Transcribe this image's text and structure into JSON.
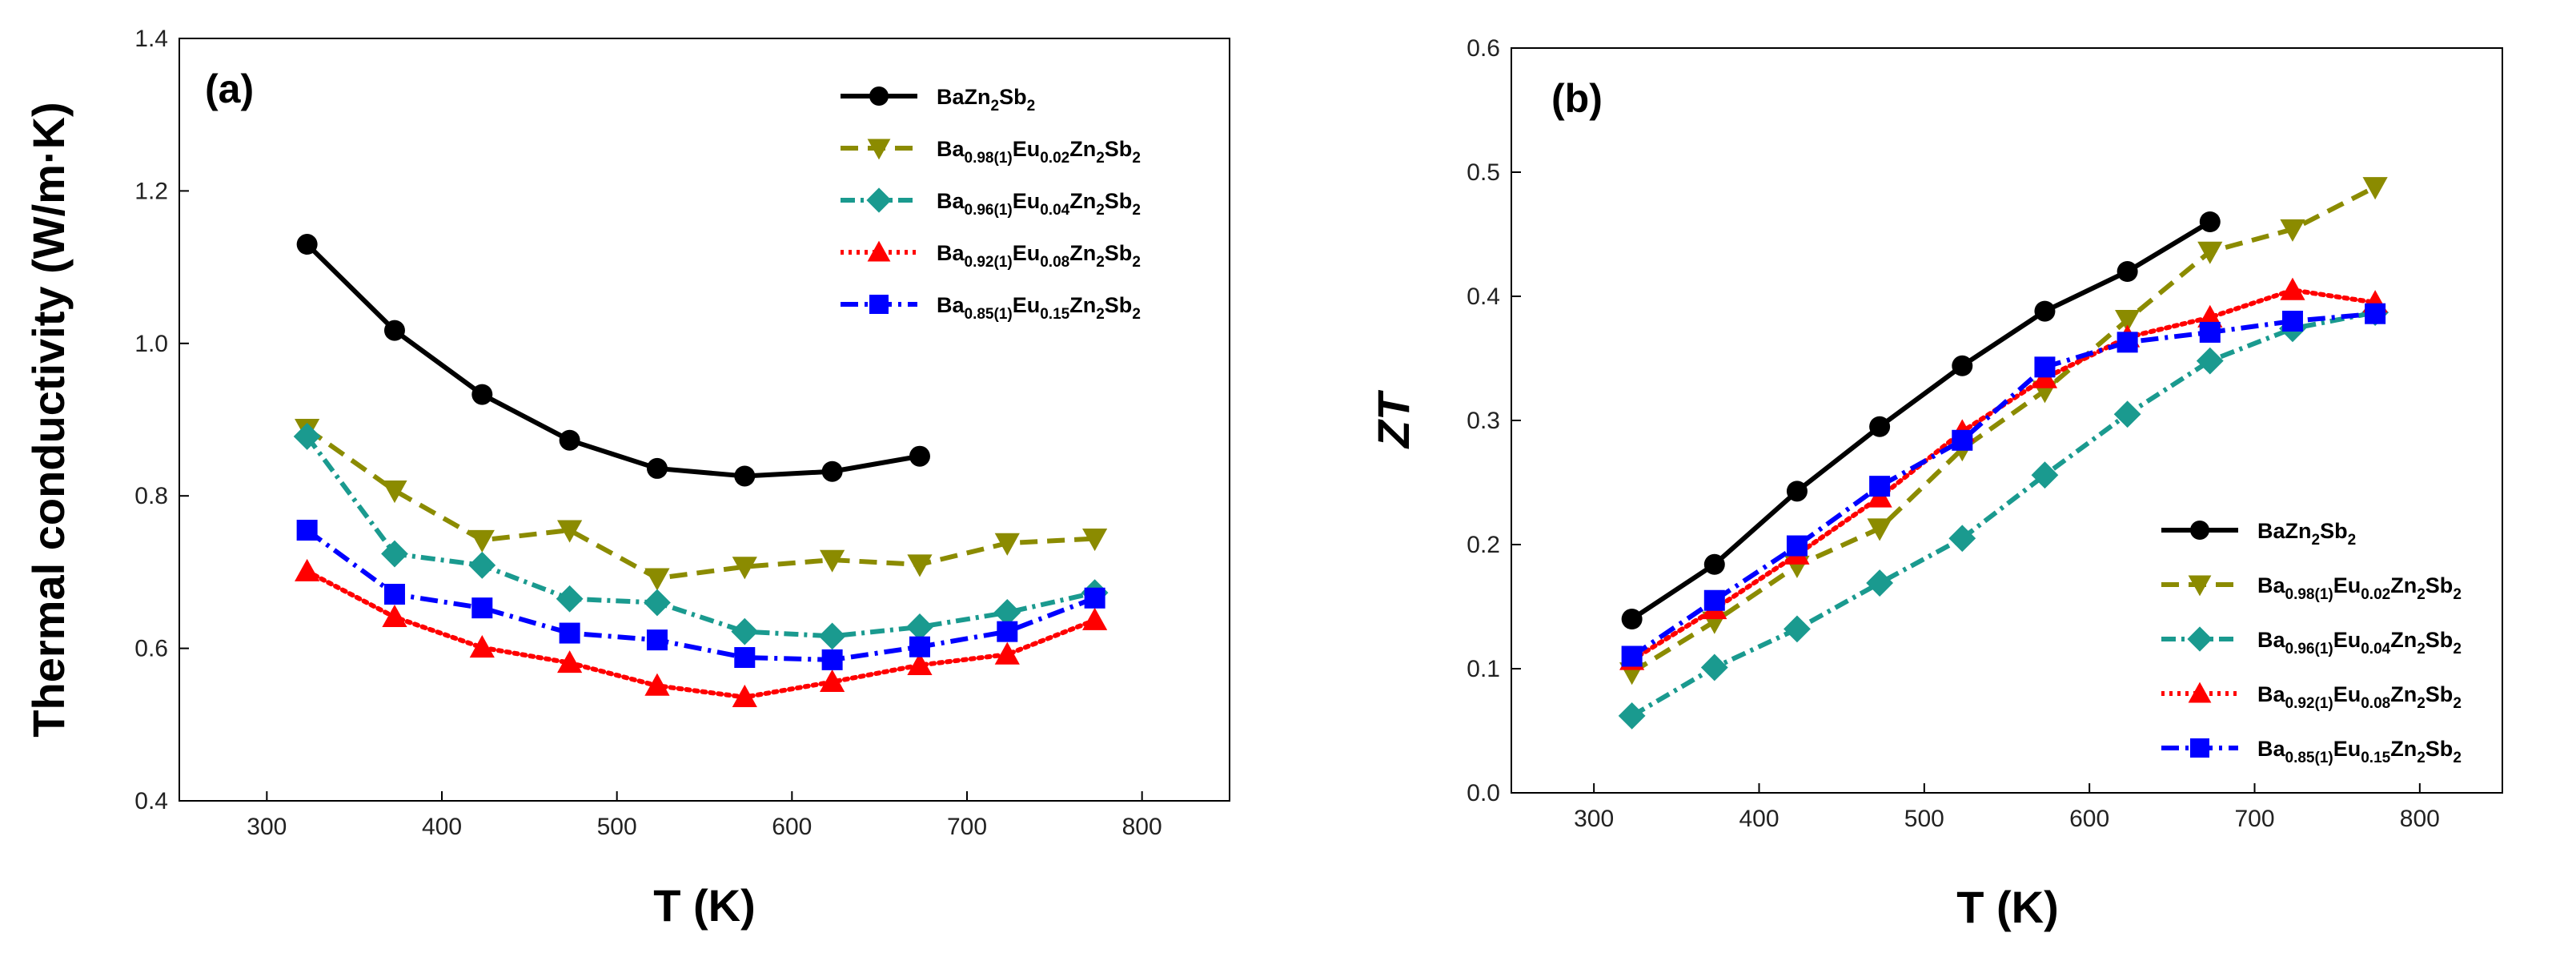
{
  "chart_data": [
    {
      "type": "line",
      "panel_label": "(a)",
      "title": "",
      "xlabel": "T (K)",
      "ylabel": "Thermal conductivity (W/m·K)",
      "xlim": [
        250,
        850
      ],
      "ylim": [
        0.4,
        1.4
      ],
      "xticks": [
        300,
        400,
        500,
        600,
        700,
        800
      ],
      "yticks": [
        0.4,
        0.6,
        0.8,
        1.0,
        1.2,
        1.4
      ],
      "ytick_labels": [
        "0.4",
        "0.6",
        "0.8",
        "1.0",
        "1.2",
        "1.4"
      ],
      "legend_position": "top-right",
      "series": [
        {
          "name": "BaZn2Sb2",
          "legend_parts": [
            [
              "BaZn",
              ""
            ],
            [
              "2",
              "sub"
            ],
            [
              "Sb",
              ""
            ],
            [
              "2",
              "sub"
            ]
          ],
          "color": "#000000",
          "marker": "circle",
          "dash": "",
          "x": [
            323,
            373,
            423,
            473,
            523,
            573,
            623,
            673
          ],
          "y": [
            1.13,
            1.017,
            0.933,
            0.873,
            0.836,
            0.826,
            0.832,
            0.852
          ]
        },
        {
          "name": "Ba0.98(1)Eu0.02Zn2Sb2",
          "legend_parts": [
            [
              "Ba",
              ""
            ],
            [
              "0.98(1)",
              "sub"
            ],
            [
              "Eu",
              ""
            ],
            [
              "0.02",
              "sub"
            ],
            [
              "Zn",
              ""
            ],
            [
              "2",
              "sub"
            ],
            [
              "Sb",
              ""
            ],
            [
              "2",
              "sub"
            ]
          ],
          "color": "#8b8b00",
          "marker": "triangle-down",
          "dash": "22,12",
          "x": [
            323,
            373,
            423,
            473,
            523,
            573,
            623,
            673,
            723,
            773
          ],
          "y": [
            0.888,
            0.807,
            0.742,
            0.755,
            0.692,
            0.707,
            0.716,
            0.71,
            0.738,
            0.744
          ]
        },
        {
          "name": "Ba0.96(1)Eu0.04Zn2Sb2",
          "legend_parts": [
            [
              "Ba",
              ""
            ],
            [
              "0.96(1)",
              "sub"
            ],
            [
              "Eu",
              ""
            ],
            [
              "0.04",
              "sub"
            ],
            [
              "Zn",
              ""
            ],
            [
              "2",
              "sub"
            ],
            [
              "Sb",
              ""
            ],
            [
              "2",
              "sub"
            ]
          ],
          "color": "#1a9a8f",
          "marker": "diamond",
          "dash": "18,7,4,7",
          "x": [
            323,
            373,
            423,
            473,
            523,
            573,
            623,
            673,
            723,
            773
          ],
          "y": [
            0.878,
            0.724,
            0.709,
            0.665,
            0.66,
            0.622,
            0.616,
            0.628,
            0.647,
            0.673
          ]
        },
        {
          "name": "Ba0.92(1)Eu0.08Zn2Sb2",
          "legend_parts": [
            [
              "Ba",
              ""
            ],
            [
              "0.92(1)",
              "sub"
            ],
            [
              "Eu",
              ""
            ],
            [
              "0.08",
              "sub"
            ],
            [
              "Zn",
              ""
            ],
            [
              "2",
              "sub"
            ],
            [
              "Sb",
              ""
            ],
            [
              "2",
              "sub"
            ]
          ],
          "color": "#ff0000",
          "marker": "triangle-up",
          "dash": "4,6",
          "x": [
            323,
            373,
            423,
            473,
            523,
            573,
            623,
            673,
            723,
            773
          ],
          "y": [
            0.701,
            0.641,
            0.601,
            0.581,
            0.551,
            0.536,
            0.556,
            0.578,
            0.592,
            0.637
          ]
        },
        {
          "name": "Ba0.85(1)Eu0.15Zn2Sb2",
          "legend_parts": [
            [
              "Ba",
              ""
            ],
            [
              "0.85(1)",
              "sub"
            ],
            [
              "Eu",
              ""
            ],
            [
              "0.15",
              "sub"
            ],
            [
              "Zn",
              ""
            ],
            [
              "2",
              "sub"
            ],
            [
              "Sb",
              ""
            ],
            [
              "2",
              "sub"
            ]
          ],
          "color": "#0000ff",
          "marker": "square",
          "dash": "22,8,4,8",
          "x": [
            323,
            373,
            423,
            473,
            523,
            573,
            623,
            673,
            723,
            773
          ],
          "y": [
            0.755,
            0.671,
            0.653,
            0.62,
            0.611,
            0.588,
            0.585,
            0.602,
            0.622,
            0.666
          ]
        }
      ]
    },
    {
      "type": "line",
      "panel_label": "(b)",
      "title": "",
      "xlabel": "T (K)",
      "ylabel": "ZT",
      "xlim": [
        250,
        850
      ],
      "ylim": [
        0.0,
        0.6
      ],
      "xticks": [
        300,
        400,
        500,
        600,
        700,
        800
      ],
      "yticks": [
        0.0,
        0.1,
        0.2,
        0.3,
        0.4,
        0.5,
        0.6
      ],
      "ytick_labels": [
        "0.0",
        "0.1",
        "0.2",
        "0.3",
        "0.4",
        "0.5",
        "0.6"
      ],
      "legend_position": "bottom-right",
      "series": [
        {
          "name": "BaZn2Sb2",
          "legend_parts": [
            [
              "BaZn",
              ""
            ],
            [
              "2",
              "sub"
            ],
            [
              "Sb",
              ""
            ],
            [
              "2",
              "sub"
            ]
          ],
          "color": "#000000",
          "marker": "circle",
          "dash": "",
          "x": [
            323,
            373,
            423,
            473,
            523,
            573,
            623,
            673
          ],
          "y": [
            0.14,
            0.184,
            0.243,
            0.295,
            0.344,
            0.388,
            0.42,
            0.46
          ]
        },
        {
          "name": "Ba0.98(1)Eu0.02Zn2Sb2",
          "legend_parts": [
            [
              "Ba",
              ""
            ],
            [
              "0.98(1)",
              "sub"
            ],
            [
              "Eu",
              ""
            ],
            [
              "0.02",
              "sub"
            ],
            [
              "Zn",
              ""
            ],
            [
              "2",
              "sub"
            ],
            [
              "Sb",
              ""
            ],
            [
              "2",
              "sub"
            ]
          ],
          "color": "#8b8b00",
          "marker": "triangle-down",
          "dash": "22,12",
          "x": [
            323,
            373,
            423,
            473,
            523,
            573,
            623,
            673,
            723,
            773
          ],
          "y": [
            0.097,
            0.138,
            0.183,
            0.213,
            0.277,
            0.324,
            0.381,
            0.436,
            0.454,
            0.488
          ]
        },
        {
          "name": "Ba0.96(1)Eu0.04Zn2Sb2",
          "legend_parts": [
            [
              "Ba",
              ""
            ],
            [
              "0.96(1)",
              "sub"
            ],
            [
              "Eu",
              ""
            ],
            [
              "0.04",
              "sub"
            ],
            [
              "Zn",
              ""
            ],
            [
              "2",
              "sub"
            ],
            [
              "Sb",
              ""
            ],
            [
              "2",
              "sub"
            ]
          ],
          "color": "#1a9a8f",
          "marker": "diamond",
          "dash": "18,7,4,7",
          "x": [
            323,
            373,
            423,
            473,
            523,
            573,
            623,
            673,
            723,
            773
          ],
          "y": [
            0.062,
            0.101,
            0.132,
            0.169,
            0.205,
            0.256,
            0.305,
            0.348,
            0.374,
            0.387
          ]
        },
        {
          "name": "Ba0.92(1)Eu0.08Zn2Sb2",
          "legend_parts": [
            [
              "Ba",
              ""
            ],
            [
              "0.92(1)",
              "sub"
            ],
            [
              "Eu",
              ""
            ],
            [
              "0.08",
              "sub"
            ],
            [
              "Zn",
              ""
            ],
            [
              "2",
              "sub"
            ],
            [
              "Sb",
              ""
            ],
            [
              "2",
              "sub"
            ]
          ],
          "color": "#ff0000",
          "marker": "triangle-up",
          "dash": "4,6",
          "x": [
            323,
            373,
            423,
            473,
            523,
            573,
            623,
            673,
            723,
            773
          ],
          "y": [
            0.107,
            0.148,
            0.192,
            0.238,
            0.291,
            0.334,
            0.367,
            0.383,
            0.405,
            0.395
          ]
        },
        {
          "name": "Ba0.85(1)Eu0.15Zn2Sb2",
          "legend_parts": [
            [
              "Ba",
              ""
            ],
            [
              "0.85(1)",
              "sub"
            ],
            [
              "Eu",
              ""
            ],
            [
              "0.15",
              "sub"
            ],
            [
              "Zn",
              ""
            ],
            [
              "2",
              "sub"
            ],
            [
              "Sb",
              ""
            ],
            [
              "2",
              "sub"
            ]
          ],
          "color": "#0000ff",
          "marker": "square",
          "dash": "22,8,4,8",
          "x": [
            323,
            373,
            423,
            473,
            523,
            573,
            623,
            673,
            723,
            773
          ],
          "y": [
            0.11,
            0.155,
            0.199,
            0.247,
            0.284,
            0.343,
            0.363,
            0.371,
            0.38,
            0.386
          ]
        }
      ]
    }
  ]
}
